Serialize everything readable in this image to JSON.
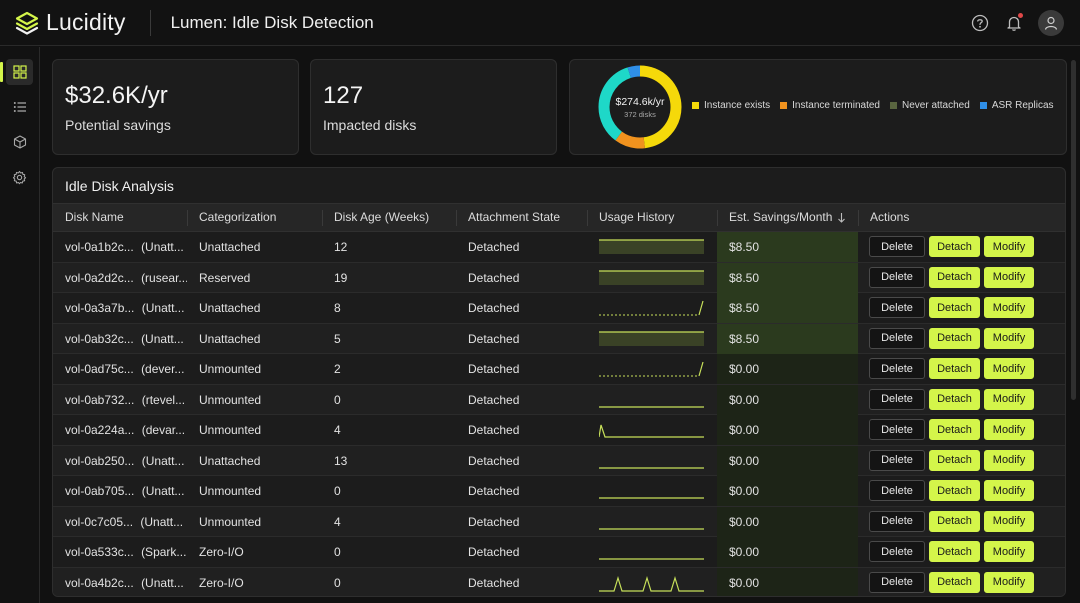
{
  "app": {
    "name": "Lucidity",
    "page_title": "Lumen: Idle Disk Detection"
  },
  "header_icons": [
    "help-icon",
    "bell-icon",
    "user-icon"
  ],
  "sidebar": {
    "items": [
      {
        "name": "dashboard-icon",
        "active": true
      },
      {
        "name": "list-icon",
        "active": false
      },
      {
        "name": "cube-icon",
        "active": false
      },
      {
        "name": "settings-icon",
        "active": false
      }
    ]
  },
  "kpis": [
    {
      "value": "$32.6K/yr",
      "label": "Potential savings"
    },
    {
      "value": "127",
      "label": "Impacted disks"
    }
  ],
  "donut": {
    "center_value": "$274.6k/yr",
    "center_sub": "372 disks",
    "segments": [
      {
        "label": "Instance exists",
        "color": "#f5d90a",
        "fraction": 0.48
      },
      {
        "label": "Instance terminated",
        "color": "#f0921e",
        "fraction": 0.12
      },
      {
        "label": "Never attached",
        "color": "#1ed8c8",
        "fraction": 0.35
      },
      {
        "label": "ASR Replicas",
        "color": "#2f8fe8",
        "fraction": 0.05
      }
    ],
    "legend": [
      {
        "label": "Instance exists",
        "color": "#f5d90a"
      },
      {
        "label": "Instance terminated",
        "color": "#f0921e"
      },
      {
        "label": "Never attached",
        "color": "#5a6640"
      },
      {
        "label": "ASR Replicas",
        "color": "#2f8fe8"
      }
    ]
  },
  "table": {
    "title": "Idle Disk Analysis",
    "columns": [
      "Disk Name",
      "Categorization",
      "Disk Age (Weeks)",
      "Attachment State",
      "Usage History",
      "Est. Savings/Month",
      "Actions"
    ],
    "sort_icon": "arrow-down-icon",
    "action_labels": {
      "delete": "Delete",
      "detach": "Detach",
      "modify": "Modify"
    },
    "rows": [
      {
        "disk": "vol-0a1b2c...",
        "tag": "(Unatt...",
        "category": "Unattached",
        "age": "12",
        "state": "Detached",
        "spark": "filled",
        "savings": "$8.50"
      },
      {
        "disk": "vol-0a2d2c...",
        "tag": "(rusear...",
        "category": "Reserved",
        "age": "19",
        "state": "Detached",
        "spark": "filled",
        "savings": "$8.50"
      },
      {
        "disk": "vol-0a3a7b...",
        "tag": "(Unatt...",
        "category": "Unattached",
        "age": "8",
        "state": "Detached",
        "spark": "rise",
        "savings": "$8.50"
      },
      {
        "disk": "vol-0ab32c...",
        "tag": "(Unatt...",
        "category": "Unattached",
        "age": "5",
        "state": "Detached",
        "spark": "filled",
        "savings": "$8.50"
      },
      {
        "disk": "vol-0ad75c...",
        "tag": "(dever...",
        "category": "Unmounted",
        "age": "2",
        "state": "Detached",
        "spark": "rise",
        "savings": "$0.00"
      },
      {
        "disk": "vol-0ab732...",
        "tag": "(rtevel...",
        "category": "Unmounted",
        "age": "0",
        "state": "Detached",
        "spark": "flat",
        "savings": "$0.00"
      },
      {
        "disk": "vol-0a224a...",
        "tag": "(devar...",
        "category": "Unmounted",
        "age": "4",
        "state": "Detached",
        "spark": "spike-start",
        "savings": "$0.00"
      },
      {
        "disk": "vol-0ab250...",
        "tag": "(Unatt...",
        "category": "Unattached",
        "age": "13",
        "state": "Detached",
        "spark": "flat",
        "savings": "$0.00"
      },
      {
        "disk": "vol-0ab705...",
        "tag": "(Unatt...",
        "category": "Unmounted",
        "age": "0",
        "state": "Detached",
        "spark": "flat",
        "savings": "$0.00"
      },
      {
        "disk": "vol-0c7c05...",
        "tag": "(Unatt...",
        "category": "Unmounted",
        "age": "4",
        "state": "Detached",
        "spark": "flat",
        "savings": "$0.00"
      },
      {
        "disk": "vol-0a533c...",
        "tag": "(Spark...",
        "category": "Zero-I/O",
        "age": "0",
        "state": "Detached",
        "spark": "flat",
        "savings": "$0.00"
      },
      {
        "disk": "vol-0a4b2c...",
        "tag": "(Unatt...",
        "category": "Zero-I/O",
        "age": "0",
        "state": "Detached",
        "spark": "multi-spike",
        "savings": "$0.00"
      }
    ]
  },
  "colors": {
    "accent": "#d4f54a",
    "background": "#111111",
    "card": "#1c1c1c"
  }
}
